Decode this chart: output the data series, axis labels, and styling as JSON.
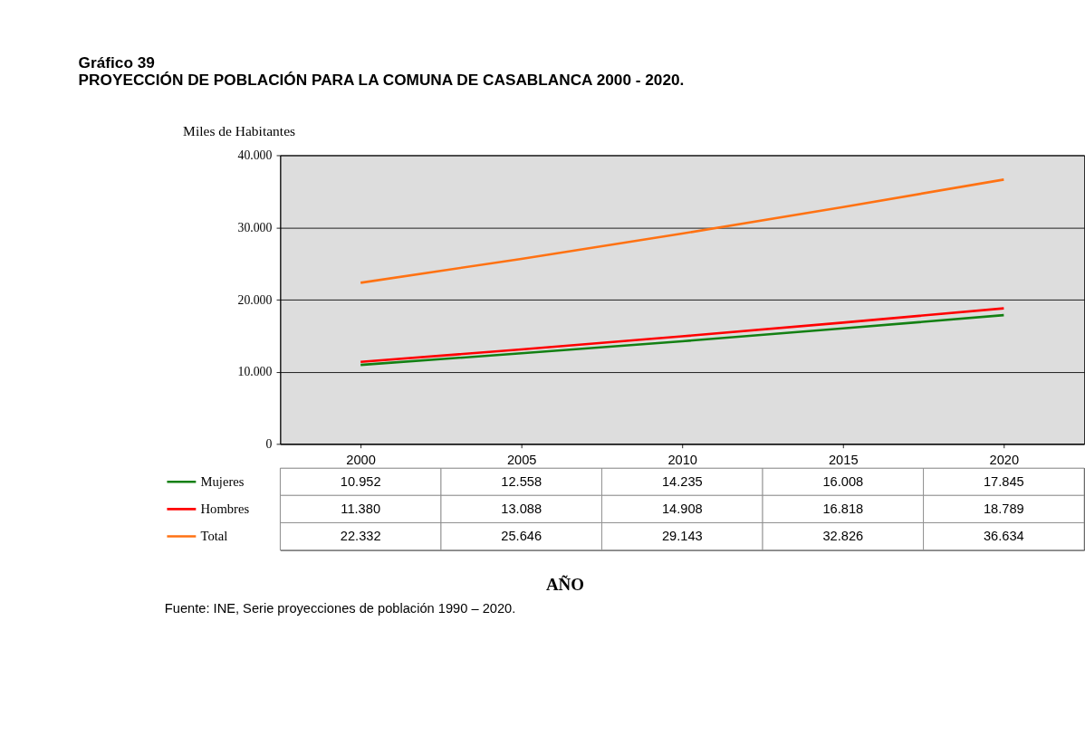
{
  "chart_data": {
    "type": "line",
    "title": "Gráfico 39",
    "subtitle": "PROYECCIÓN DE POBLACIÓN PARA LA COMUNA DE CASABLANCA 2000 - 2020.",
    "ylabel": "Miles de Habitantes",
    "categories": [
      "2000",
      "2005",
      "2010",
      "2015",
      "2020"
    ],
    "series": [
      {
        "name": "Mujeres",
        "color": "#138013",
        "values": [
          10952,
          12558,
          14235,
          16008,
          17845
        ],
        "value_labels": [
          "10.952",
          "12.558",
          "14.235",
          "16.008",
          "17.845"
        ]
      },
      {
        "name": "Hombres",
        "color": "#ff0000",
        "values": [
          11380,
          13088,
          14908,
          16818,
          18789
        ],
        "value_labels": [
          "11.380",
          "13.088",
          "14.908",
          "16.818",
          "18.789"
        ]
      },
      {
        "name": "Total",
        "color": "#ff7213",
        "values": [
          22332,
          25646,
          29143,
          32826,
          36634
        ],
        "value_labels": [
          "22.332",
          "25.646",
          "29.143",
          "32.826",
          "36.634"
        ]
      }
    ],
    "ylim": [
      0,
      40000
    ],
    "yticks": [
      {
        "value": 0,
        "label": "0"
      },
      {
        "value": 10000,
        "label": "10.000"
      },
      {
        "value": 20000,
        "label": "20.000"
      },
      {
        "value": 30000,
        "label": "30.000"
      },
      {
        "value": 40000,
        "label": "40.000"
      }
    ],
    "grid": "y",
    "legend": "bottom",
    "marker": "none",
    "line_style": "solid",
    "annotations": [
      "AÑO",
      "Fuente: INE, Serie proyecciones de población 1990 – 2020."
    ]
  }
}
